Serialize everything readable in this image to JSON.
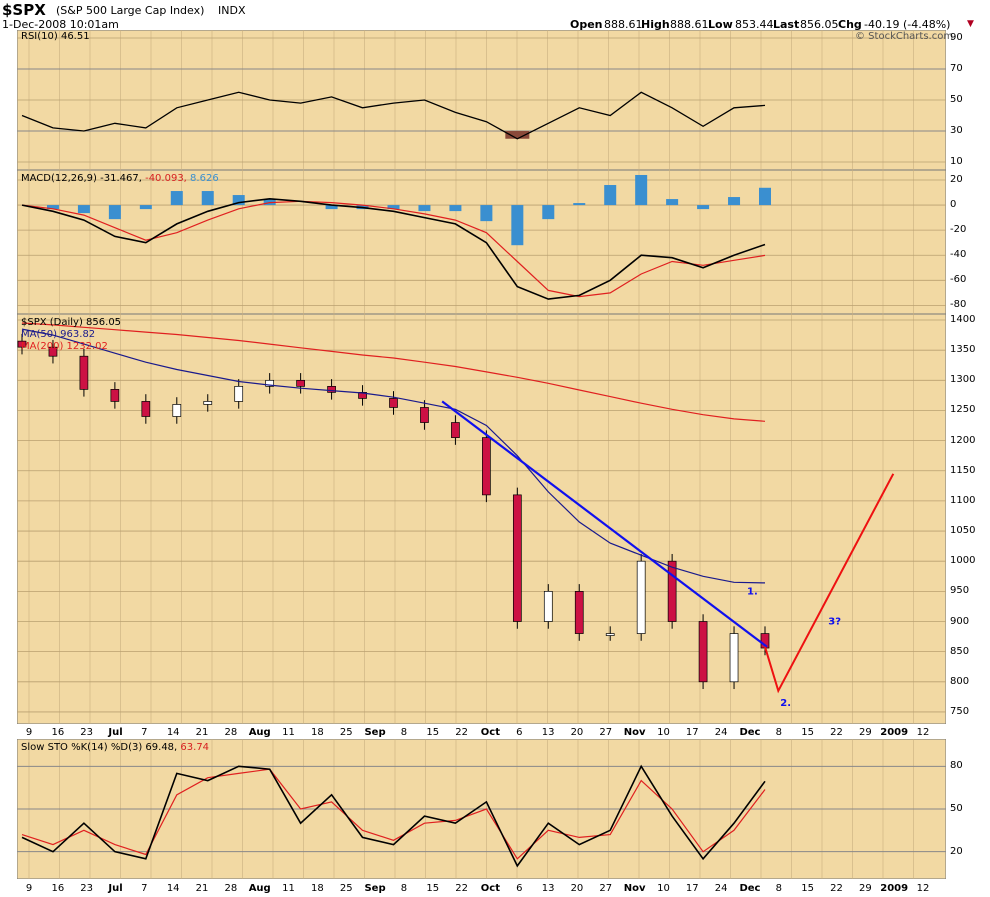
{
  "header": {
    "symbol": "$SPX",
    "name": "(S&P 500 Large Cap Index)",
    "exchange": "INDX",
    "datetime": "1-Dec-2008 10:01am",
    "open_label": "Open",
    "open": "888.61",
    "high_label": "High",
    "high": "888.61",
    "low_label": "Low",
    "low": "853.44",
    "last_label": "Last",
    "last": "856.05",
    "chg_label": "Chg",
    "chg": "-40.19 (-4.48%)",
    "watermark": "© StockCharts.com"
  },
  "colors": {
    "background": "#f2d9a3",
    "up_candle": "#ffffff",
    "down_candle": "#cc1144",
    "ma50": "#1a1a8c",
    "ma200": "#e02020",
    "trendline": "#1010ee",
    "projection": "#ee1111",
    "macd_hist": "#3a8fd0"
  },
  "panels": {
    "rsi": {
      "label": "RSI(10) 46.51",
      "ticks": [
        "90",
        "70",
        "50",
        "30",
        "10"
      ]
    },
    "macd": {
      "label_main": "MACD(12,26,9) -31.467,",
      "label_signal": " -40.093,",
      "label_hist": " 8.626",
      "ticks": [
        "20",
        "0",
        "-20",
        "-40",
        "-60",
        "-80"
      ]
    },
    "price": {
      "label": "$SPX (Daily) 856.05",
      "ma50_label": "MA(50) 963.82",
      "ma200_label": "MA(200) 1232.02",
      "ticks": [
        "1400",
        "1350",
        "1300",
        "1250",
        "1200",
        "1150",
        "1100",
        "1050",
        "1000",
        "950",
        "900",
        "850",
        "800",
        "750"
      ]
    },
    "sto": {
      "label_main": "Slow STO %K(14) %D(3) 69.48,",
      "label_d": " 63.74",
      "ticks": [
        "80",
        "50",
        "20"
      ]
    }
  },
  "x_axis_labels": [
    "9",
    "16",
    "23",
    "Jul",
    "7",
    "14",
    "21",
    "28",
    "Aug",
    "11",
    "18",
    "25",
    "Sep",
    "8",
    "15",
    "22",
    "Oct",
    "6",
    "13",
    "20",
    "27",
    "Nov",
    "10",
    "17",
    "24",
    "Dec",
    "8",
    "15",
    "22",
    "29",
    "2009",
    "12"
  ],
  "annotations": [
    "1.",
    "2.",
    "3?"
  ],
  "chart_data": {
    "type": "line",
    "title": "$SPX (S&P 500 Large Cap Index) INDX",
    "x": [
      "Jun 9",
      "Jun 16",
      "Jun 23",
      "Jul 7",
      "Jul 14",
      "Jul 21",
      "Jul 28",
      "Aug 4",
      "Aug 11",
      "Aug 18",
      "Aug 25",
      "Sep 2",
      "Sep 8",
      "Sep 15",
      "Sep 22",
      "Sep 29",
      "Oct 6",
      "Oct 13",
      "Oct 20",
      "Oct 27",
      "Nov 3",
      "Nov 10",
      "Nov 17",
      "Nov 24",
      "Dec 1"
    ],
    "series": [
      {
        "name": "$SPX",
        "values": [
          1355,
          1340,
          1285,
          1265,
          1240,
          1260,
          1265,
          1290,
          1300,
          1290,
          1280,
          1270,
          1255,
          1230,
          1205,
          1110,
          900,
          950,
          880,
          880,
          1000,
          900,
          800,
          880,
          856
        ]
      },
      {
        "name": "MA(50)",
        "values": [
          1385,
          1375,
          1360,
          1345,
          1330,
          1318,
          1308,
          1298,
          1292,
          1287,
          1283,
          1279,
          1272,
          1262,
          1252,
          1225,
          1175,
          1115,
          1065,
          1030,
          1010,
          990,
          975,
          965,
          964
        ]
      },
      {
        "name": "MA(200)",
        "values": [
          1395,
          1392,
          1388,
          1384,
          1380,
          1376,
          1371,
          1366,
          1360,
          1354,
          1348,
          1342,
          1337,
          1330,
          1323,
          1314,
          1305,
          1295,
          1284,
          1273,
          1262,
          1252,
          1243,
          1236,
          1232
        ]
      }
    ],
    "trendline": {
      "from": [
        "Sep 19",
        1265
      ],
      "to": [
        "Dec 1",
        858
      ]
    },
    "projection": {
      "points": [
        [
          "Dec 1",
          858
        ],
        [
          "Dec 4",
          785
        ],
        [
          "Dec 30",
          1145
        ]
      ],
      "labels": [
        "2.",
        "3?"
      ]
    },
    "indicators": {
      "rsi": {
        "values": [
          40,
          32,
          30,
          35,
          32,
          45,
          50,
          55,
          50,
          48,
          52,
          45,
          48,
          50,
          42,
          36,
          25,
          35,
          45,
          40,
          55,
          45,
          33,
          45,
          46.51
        ]
      },
      "macd": {
        "macd": [
          0,
          -5,
          -12,
          -25,
          -30,
          -15,
          -5,
          2,
          5,
          3,
          0,
          -2,
          -5,
          -10,
          -15,
          -30,
          -65,
          -75,
          -72,
          -60,
          -40,
          -42,
          -50,
          -40,
          -31.467
        ],
        "signal": [
          0,
          -3,
          -8,
          -18,
          -28,
          -22,
          -12,
          -3,
          2,
          3,
          2,
          0,
          -3,
          -7,
          -12,
          -22,
          -45,
          -68,
          -73,
          -70,
          -55,
          -45,
          -48,
          -44,
          -40.093
        ]
      },
      "slow_sto": {
        "k": [
          30,
          20,
          40,
          20,
          15,
          75,
          70,
          80,
          78,
          40,
          60,
          30,
          25,
          45,
          40,
          55,
          10,
          40,
          25,
          35,
          80,
          45,
          15,
          40,
          69.48
        ],
        "d": [
          32,
          25,
          35,
          25,
          18,
          60,
          72,
          75,
          78,
          50,
          55,
          35,
          28,
          40,
          42,
          50,
          15,
          35,
          30,
          32,
          70,
          50,
          20,
          35,
          63.74
        ]
      }
    },
    "ylim": [
      730,
      1410
    ],
    "ylabel": "",
    "grid": true
  }
}
